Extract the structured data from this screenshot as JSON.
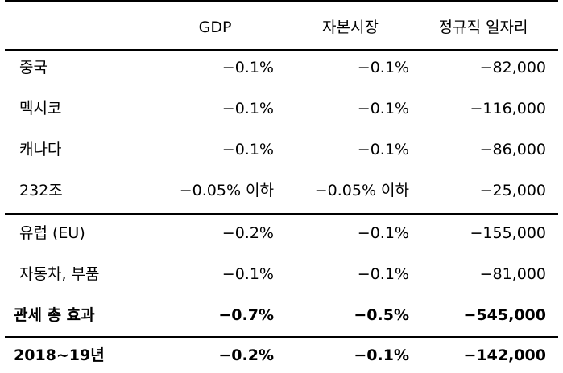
{
  "table": {
    "columns": [
      "GDP",
      "자본시장",
      "정규직 일자리"
    ],
    "rows": [
      {
        "label": "중국",
        "gdp": "−0.1%",
        "capital": "−0.1%",
        "jobs": "−82,000"
      },
      {
        "label": "멕시코",
        "gdp": "−0.1%",
        "capital": "−0.1%",
        "jobs": "−116,000"
      },
      {
        "label": "캐나다",
        "gdp": "−0.1%",
        "capital": "−0.1%",
        "jobs": "−86,000"
      },
      {
        "label": "232조",
        "gdp": "−0.05% 이하",
        "capital": "−0.05% 이하",
        "jobs": "−25,000"
      },
      {
        "label": "유럽 (EU)",
        "gdp": "−0.2%",
        "capital": "−0.1%",
        "jobs": "−155,000"
      },
      {
        "label": "자동차, 부품",
        "gdp": "−0.1%",
        "capital": "−0.1%",
        "jobs": "−81,000"
      }
    ],
    "total": {
      "label": "관세 총 효과",
      "gdp": "−0.7%",
      "capital": "−0.5%",
      "jobs": "−545,000"
    },
    "summary": {
      "label": "2018~19년",
      "gdp": "−0.2%",
      "capital": "−0.1%",
      "jobs": "−142,000"
    }
  }
}
